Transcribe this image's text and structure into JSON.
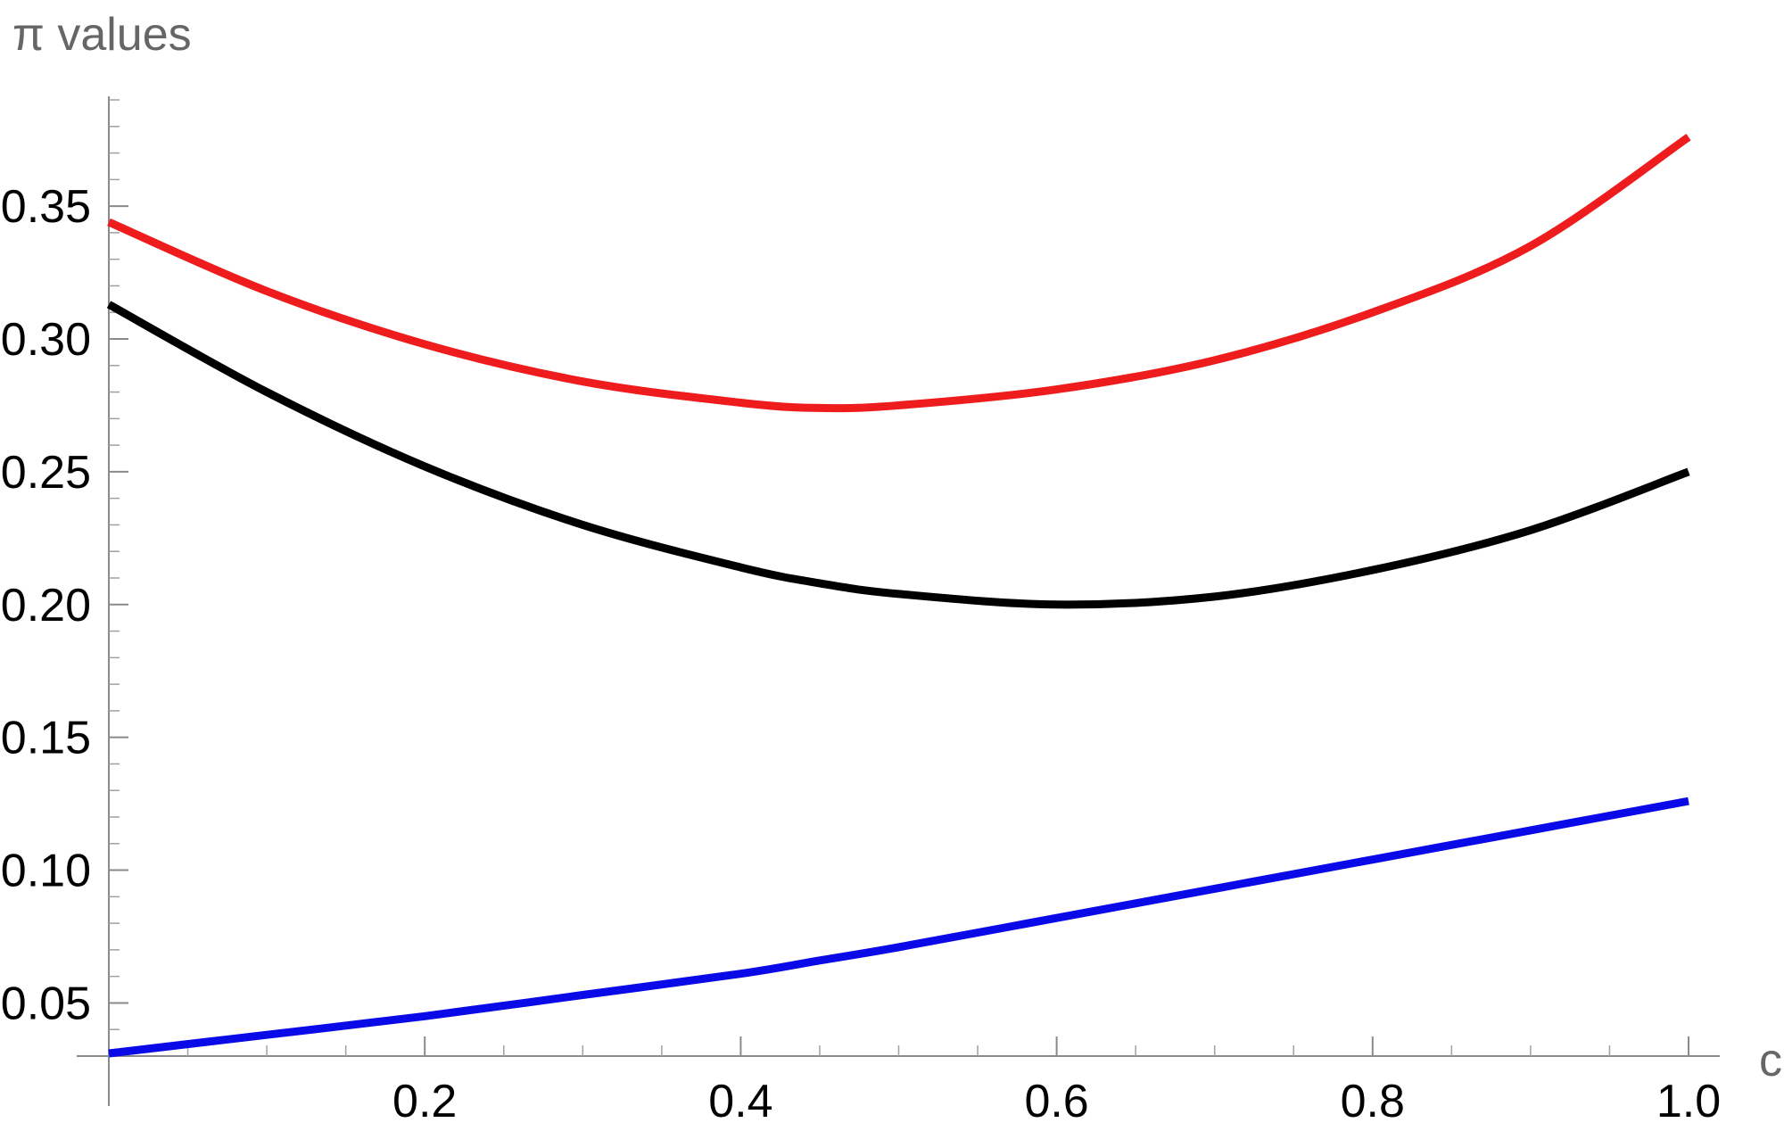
{
  "chart_data": {
    "type": "line",
    "title": "",
    "xlabel": "c",
    "ylabel": "π values",
    "xlim": [
      0,
      1.0
    ],
    "ylim": [
      0.03,
      0.39
    ],
    "x_ticks": [
      0.2,
      0.4,
      0.6,
      0.8,
      1.0
    ],
    "x_tick_labels": [
      "0.2",
      "0.4",
      "0.6",
      "0.8",
      "1.0"
    ],
    "y_ticks": [
      0.05,
      0.1,
      0.15,
      0.2,
      0.25,
      0.3,
      0.35
    ],
    "y_tick_labels": [
      "0.05",
      "0.10",
      "0.15",
      "0.20",
      "0.25",
      "0.30",
      "0.35"
    ],
    "grid": false,
    "legend": "none",
    "x": [
      0.0,
      0.1,
      0.2,
      0.3,
      0.4,
      0.45,
      0.5,
      0.6,
      0.7,
      0.8,
      0.9,
      1.0
    ],
    "series": [
      {
        "color": "#ee1c1c",
        "values": [
          0.344,
          0.318,
          0.298,
          0.284,
          0.276,
          0.274,
          0.275,
          0.281,
          0.292,
          0.31,
          0.335,
          0.376
        ]
      },
      {
        "color": "#000000",
        "values": [
          0.313,
          0.28,
          0.252,
          0.23,
          0.214,
          0.208,
          0.204,
          0.2,
          0.203,
          0.213,
          0.228,
          0.25
        ]
      },
      {
        "color": "#0a0ae8",
        "values": [
          0.031,
          0.038,
          0.045,
          0.053,
          0.061,
          0.066,
          0.071,
          0.082,
          0.093,
          0.104,
          0.115,
          0.126
        ]
      }
    ]
  }
}
